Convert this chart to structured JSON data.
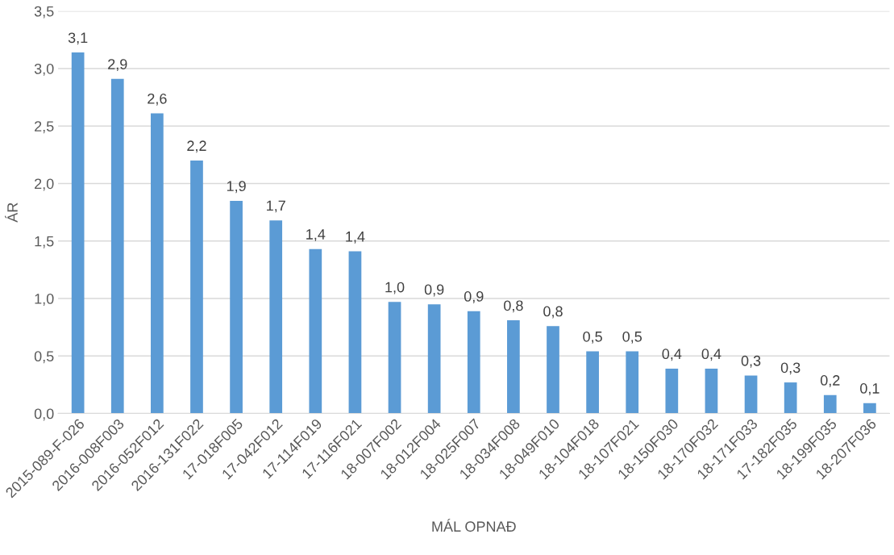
{
  "chart_data": {
    "type": "bar",
    "xlabel": "MÁL OPNAÐ",
    "ylabel": "ÁR",
    "categories": [
      "2015-089-F-026",
      "2016-008F003",
      "2016-052F012",
      "2016-131F022",
      "17-018F005",
      "17-042F012",
      "17-114F019",
      "17-116F021",
      "18-007F002",
      "18-012F004",
      "18-025F007",
      "18-034F008",
      "18-049F010",
      "18-104F018",
      "18-107F021",
      "18-150F030",
      "18-170F032",
      "18-171F033",
      "17-182F035",
      "18-199F035",
      "18-207F036"
    ],
    "values": [
      3.14,
      2.91,
      2.61,
      2.2,
      1.85,
      1.68,
      1.43,
      1.41,
      0.97,
      0.95,
      0.89,
      0.81,
      0.76,
      0.54,
      0.54,
      0.39,
      0.39,
      0.33,
      0.27,
      0.16,
      0.09
    ],
    "value_labels": [
      "3,1",
      "2,9",
      "2,6",
      "2,2",
      "1,9",
      "1,7",
      "1,4",
      "1,4",
      "1,0",
      "0,9",
      "0,9",
      "0,8",
      "0,8",
      "0,5",
      "0,5",
      "0,4",
      "0,4",
      "0,3",
      "0,3",
      "0,2",
      "0,1"
    ],
    "color": "#5b9bd5",
    "ylim": [
      0,
      3.5
    ],
    "yticks": [
      {
        "value": 0,
        "label": "0,0"
      },
      {
        "value": 0.5,
        "label": "0,5"
      },
      {
        "value": 1,
        "label": "1,0"
      },
      {
        "value": 1.5,
        "label": "1,5"
      },
      {
        "value": 2,
        "label": "2,0"
      },
      {
        "value": 2.5,
        "label": "2,5"
      },
      {
        "value": 3,
        "label": "3,0"
      },
      {
        "value": 3.5,
        "label": "3,5"
      }
    ],
    "grid": "y"
  }
}
